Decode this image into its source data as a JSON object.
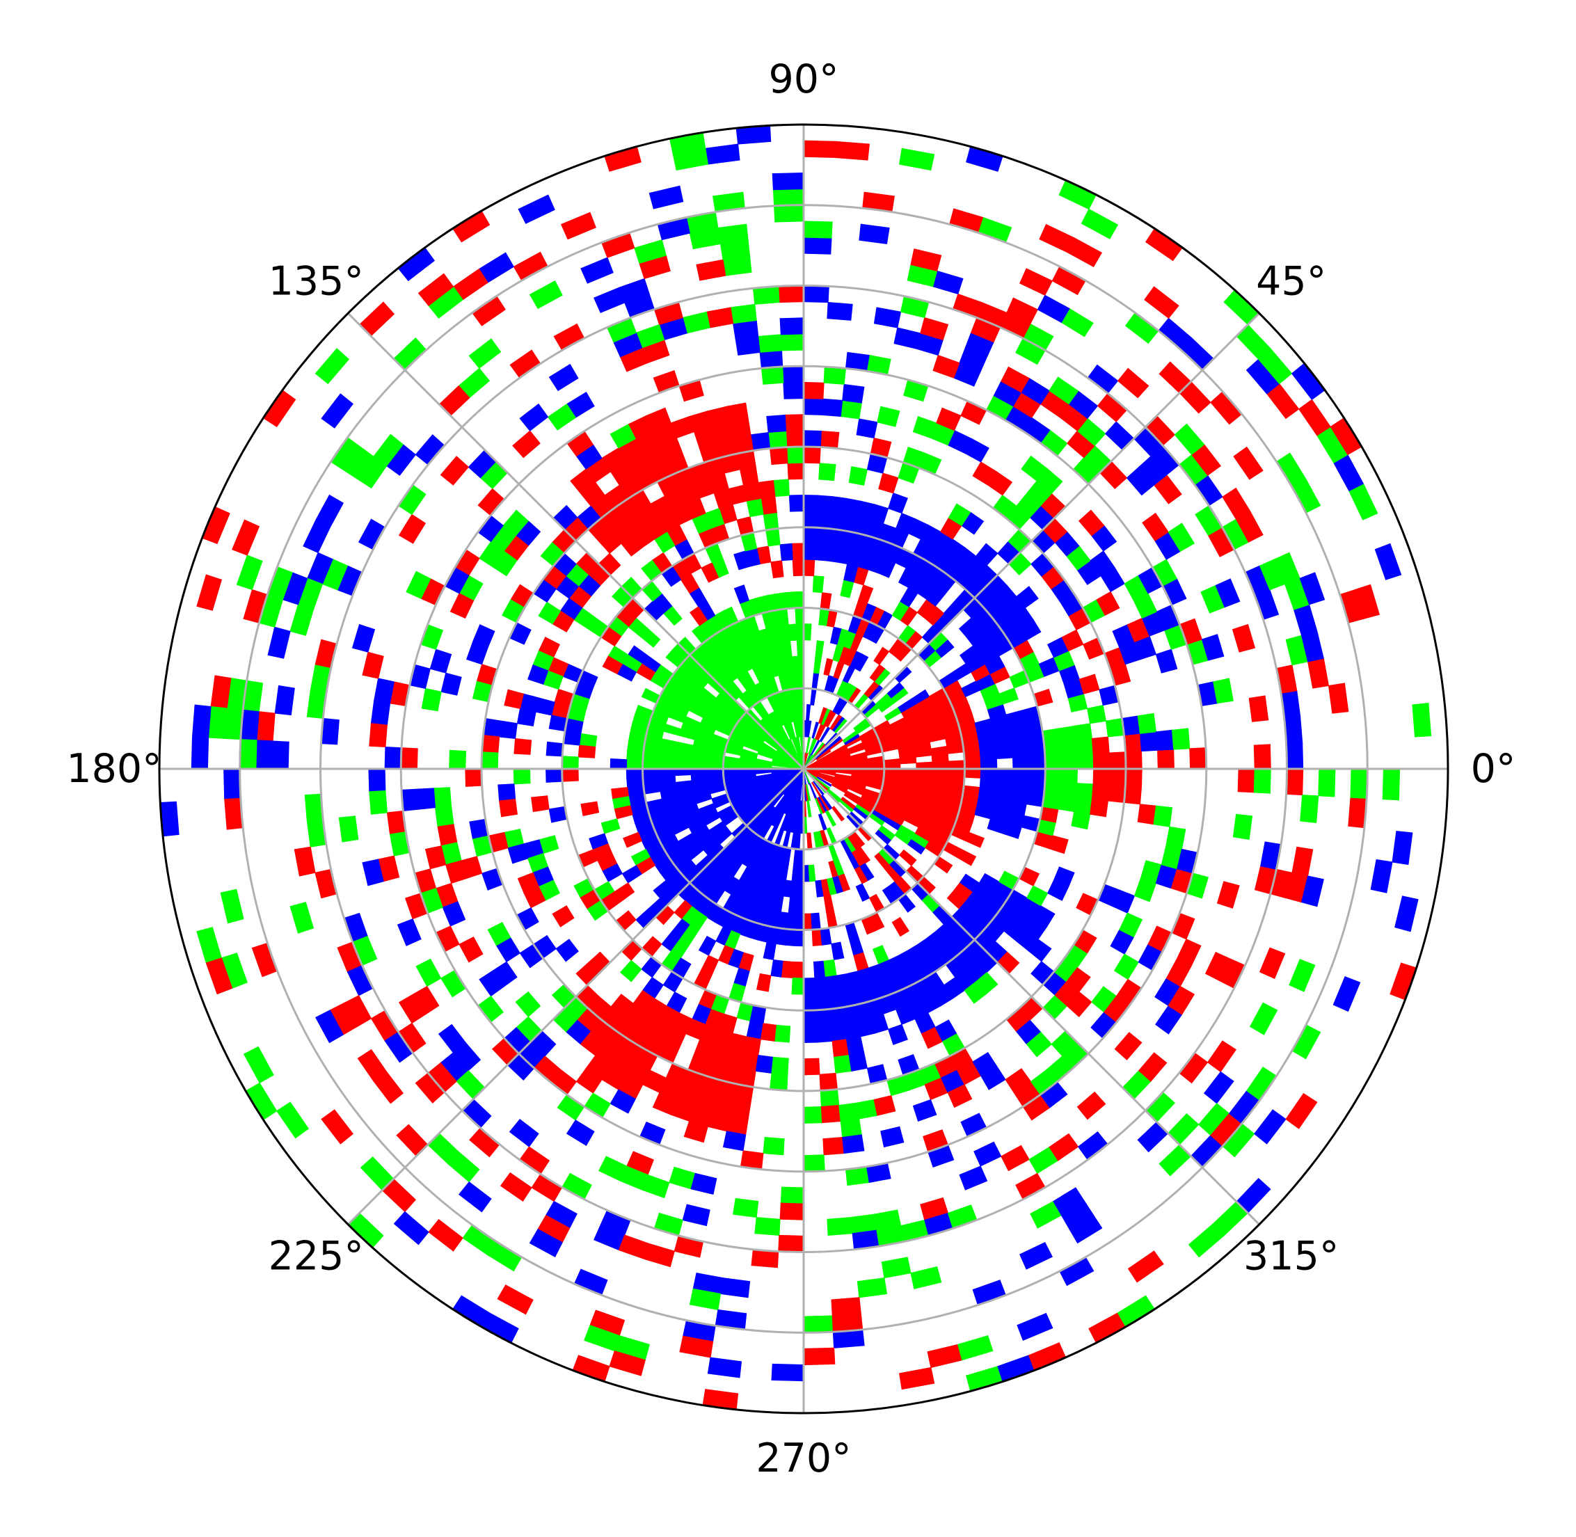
{
  "chart_data": {
    "type": "polar contourf",
    "title": "",
    "xlabel": "",
    "ylabel": "",
    "theta_tick_labels": [
      "0°",
      "45°",
      "90°",
      "135°",
      "180°",
      "225°",
      "270°",
      "315°"
    ],
    "theta_ticks_deg": [
      0,
      45,
      90,
      135,
      180,
      225,
      270,
      315
    ],
    "radial_gridlines": 8,
    "radial_tick_labels_shown": false,
    "grid": true,
    "legend": "none",
    "fill_levels": [
      {
        "color": "#0000ff"
      },
      {
        "color": "#00ff00"
      },
      {
        "color": "#ff0000"
      }
    ],
    "regions": [
      {
        "level": 1,
        "theta_deg": [
          90,
          180
        ],
        "r": [
          0,
          2.1
        ]
      },
      {
        "level": 0,
        "theta_deg": [
          180,
          270
        ],
        "r": [
          0,
          2.1
        ]
      },
      {
        "level": 2,
        "theta_deg": [
          330,
          390
        ],
        "r": [
          0,
          2.2
        ]
      },
      {
        "level": 0,
        "theta_deg": [
          345,
          375
        ],
        "r": [
          2.2,
          2.9
        ]
      },
      {
        "level": 1,
        "theta_deg": [
          350,
          370
        ],
        "r": [
          2.9,
          3.6
        ]
      },
      {
        "level": 2,
        "theta_deg": [
          355,
          365
        ],
        "r": [
          3.6,
          4.3
        ]
      },
      {
        "level": 2,
        "theta_deg": [
          100,
          130
        ],
        "r": [
          3.4,
          4.5
        ]
      },
      {
        "level": 2,
        "theta_deg": [
          230,
          260
        ],
        "r": [
          3.4,
          4.6
        ]
      },
      {
        "level": 0,
        "theta_deg": [
          30,
          90
        ],
        "r": [
          2.6,
          3.3
        ]
      },
      {
        "level": 0,
        "theta_deg": [
          270,
          330
        ],
        "r": [
          2.6,
          3.3
        ]
      }
    ]
  }
}
